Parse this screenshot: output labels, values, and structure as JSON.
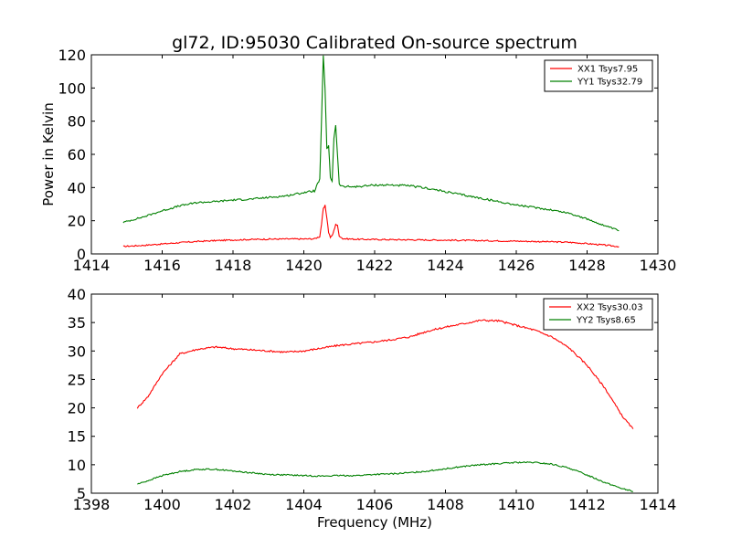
{
  "chart_data": [
    {
      "type": "line",
      "title": "gl72, ID:95030 Calibrated On-source spectrum",
      "xlabel": "",
      "ylabel": "Power in Kelvin",
      "xlim": [
        1414,
        1430
      ],
      "ylim": [
        0,
        120
      ],
      "xticks": [
        1414,
        1416,
        1418,
        1420,
        1422,
        1424,
        1426,
        1428,
        1430
      ],
      "yticks": [
        0,
        20,
        40,
        60,
        80,
        100,
        120
      ],
      "legend_position": "top-right",
      "grid": false,
      "series": [
        {
          "name": "XX1 Tsys7.95",
          "color": "#ff0000",
          "points": [
            [
              1414.9,
              4.5
            ],
            [
              1415.5,
              5.2
            ],
            [
              1416,
              6.0
            ],
            [
              1416.5,
              6.8
            ],
            [
              1417,
              7.5
            ],
            [
              1417.5,
              8.0
            ],
            [
              1418,
              8.4
            ],
            [
              1418.5,
              8.7
            ],
            [
              1419,
              8.9
            ],
            [
              1419.5,
              9.0
            ],
            [
              1420,
              9.0
            ],
            [
              1420.3,
              9.1
            ],
            [
              1420.45,
              10.5
            ],
            [
              1420.5,
              18
            ],
            [
              1420.55,
              27
            ],
            [
              1420.6,
              29
            ],
            [
              1420.65,
              22
            ],
            [
              1420.7,
              13
            ],
            [
              1420.75,
              10
            ],
            [
              1420.8,
              11
            ],
            [
              1420.85,
              14
            ],
            [
              1420.9,
              18
            ],
            [
              1420.95,
              17
            ],
            [
              1421.0,
              11
            ],
            [
              1421.1,
              9.2
            ],
            [
              1421.5,
              8.8
            ],
            [
              1422,
              8.7
            ],
            [
              1423,
              8.5
            ],
            [
              1424,
              8.3
            ],
            [
              1425,
              8.0
            ],
            [
              1426,
              7.7
            ],
            [
              1427,
              7.3
            ],
            [
              1427.5,
              7.0
            ],
            [
              1428,
              6.2
            ],
            [
              1428.5,
              5.3
            ],
            [
              1428.9,
              4.4
            ]
          ]
        },
        {
          "name": "YY1 Tsys32.79",
          "color": "#008000",
          "points": [
            [
              1414.9,
              19
            ],
            [
              1415.5,
              22.5
            ],
            [
              1416,
              26
            ],
            [
              1416.5,
              29
            ],
            [
              1417,
              31
            ],
            [
              1417.5,
              31.5
            ],
            [
              1418,
              32.5
            ],
            [
              1418.5,
              33
            ],
            [
              1419,
              34
            ],
            [
              1419.5,
              35
            ],
            [
              1420,
              37
            ],
            [
              1420.3,
              38
            ],
            [
              1420.45,
              45
            ],
            [
              1420.5,
              80
            ],
            [
              1420.55,
              119
            ],
            [
              1420.6,
              100
            ],
            [
              1420.65,
              63
            ],
            [
              1420.7,
              65
            ],
            [
              1420.75,
              46
            ],
            [
              1420.8,
              44
            ],
            [
              1420.85,
              70
            ],
            [
              1420.9,
              78
            ],
            [
              1420.95,
              60
            ],
            [
              1421.0,
              42
            ],
            [
              1421.1,
              40.5
            ],
            [
              1421.5,
              40.5
            ],
            [
              1422,
              41.5
            ],
            [
              1422.5,
              41.5
            ],
            [
              1423,
              41
            ],
            [
              1423.5,
              39.5
            ],
            [
              1424,
              37.5
            ],
            [
              1424.5,
              35.5
            ],
            [
              1425,
              33.5
            ],
            [
              1425.5,
              31.5
            ],
            [
              1426,
              29.5
            ],
            [
              1426.5,
              28
            ],
            [
              1427,
              26.5
            ],
            [
              1427.5,
              24.5
            ],
            [
              1428,
              21
            ],
            [
              1428.5,
              17
            ],
            [
              1428.9,
              14
            ]
          ]
        }
      ]
    },
    {
      "type": "line",
      "title": "",
      "xlabel": "Frequency (MHz)",
      "ylabel": "",
      "xlim": [
        1398,
        1414
      ],
      "ylim": [
        5,
        40
      ],
      "xticks": [
        1398,
        1400,
        1402,
        1404,
        1406,
        1408,
        1410,
        1412,
        1414
      ],
      "yticks": [
        5,
        10,
        15,
        20,
        25,
        30,
        35,
        40
      ],
      "legend_position": "top-right",
      "grid": false,
      "series": [
        {
          "name": "XX2 Tsys30.03",
          "color": "#ff0000",
          "points": [
            [
              1399.3,
              20
            ],
            [
              1399.6,
              22
            ],
            [
              1400,
              26
            ],
            [
              1400.5,
              29.5
            ],
            [
              1401,
              30.3
            ],
            [
              1401.5,
              30.7
            ],
            [
              1402,
              30.4
            ],
            [
              1402.5,
              30.2
            ],
            [
              1403,
              30.0
            ],
            [
              1403.5,
              29.8
            ],
            [
              1404,
              30.0
            ],
            [
              1404.5,
              30.5
            ],
            [
              1405,
              31.0
            ],
            [
              1405.5,
              31.3
            ],
            [
              1406,
              31.6
            ],
            [
              1406.5,
              32.0
            ],
            [
              1407,
              32.5
            ],
            [
              1407.5,
              33.5
            ],
            [
              1408,
              34.2
            ],
            [
              1408.5,
              34.8
            ],
            [
              1409,
              35.4
            ],
            [
              1409.5,
              35.3
            ],
            [
              1410,
              34.5
            ],
            [
              1410.5,
              33.7
            ],
            [
              1411,
              32.5
            ],
            [
              1411.5,
              30.5
            ],
            [
              1412,
              27.5
            ],
            [
              1412.5,
              23.5
            ],
            [
              1413,
              18.5
            ],
            [
              1413.3,
              16.3
            ]
          ]
        },
        {
          "name": "YY2 Tsys8.65",
          "color": "#008000",
          "points": [
            [
              1399.3,
              6.6
            ],
            [
              1399.6,
              7.2
            ],
            [
              1400,
              8.1
            ],
            [
              1400.5,
              8.8
            ],
            [
              1401,
              9.2
            ],
            [
              1401.5,
              9.2
            ],
            [
              1402,
              8.9
            ],
            [
              1402.5,
              8.6
            ],
            [
              1403,
              8.3
            ],
            [
              1403.5,
              8.2
            ],
            [
              1404,
              8.1
            ],
            [
              1404.5,
              8.0
            ],
            [
              1405,
              8.1
            ],
            [
              1405.5,
              8.1
            ],
            [
              1406,
              8.3
            ],
            [
              1406.5,
              8.4
            ],
            [
              1407,
              8.6
            ],
            [
              1407.5,
              8.9
            ],
            [
              1408,
              9.3
            ],
            [
              1408.5,
              9.7
            ],
            [
              1409,
              10.0
            ],
            [
              1409.5,
              10.2
            ],
            [
              1410,
              10.4
            ],
            [
              1410.5,
              10.4
            ],
            [
              1411,
              10.1
            ],
            [
              1411.5,
              9.4
            ],
            [
              1412,
              8.2
            ],
            [
              1412.5,
              6.9
            ],
            [
              1413,
              5.8
            ],
            [
              1413.3,
              5.3
            ]
          ]
        }
      ]
    }
  ]
}
